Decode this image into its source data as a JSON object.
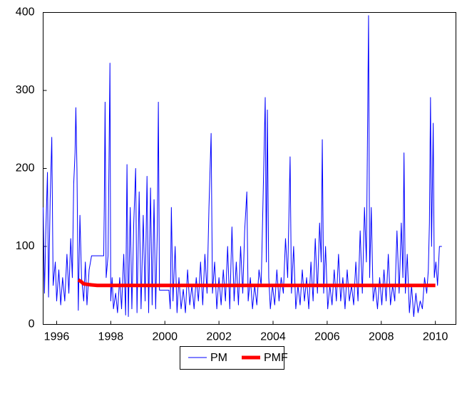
{
  "chart_data": {
    "type": "line",
    "xlim": [
      1995.5,
      2010.76
    ],
    "ylim": [
      0,
      400
    ],
    "xticks": [
      1996,
      1998,
      2000,
      2002,
      2004,
      2006,
      2008,
      2010
    ],
    "yticks": [
      0,
      100,
      200,
      300,
      400
    ],
    "legend": "bottom",
    "series": [
      {
        "name": "PM",
        "color": "#0000ff",
        "width": 1,
        "x": [
          1995.5,
          1995.55,
          1995.6,
          1995.66,
          1995.7,
          1995.76,
          1995.82,
          1995.87,
          1995.95,
          1996.0,
          1996.08,
          1996.15,
          1996.22,
          1996.3,
          1996.38,
          1996.45,
          1996.52,
          1996.58,
          1996.63,
          1996.68,
          1996.71,
          1996.75,
          1996.8,
          1996.86,
          1996.92,
          1997.0,
          1997.06,
          1997.12,
          1997.2,
          1997.29,
          1997.74,
          1997.76,
          1997.79,
          1997.83,
          1997.9,
          1997.97,
          1998.0,
          1998.05,
          1998.1,
          1998.18,
          1998.25,
          1998.33,
          1998.4,
          1998.48,
          1998.55,
          1998.6,
          1998.65,
          1998.72,
          1998.78,
          1998.85,
          1998.92,
          1998.97,
          1999.05,
          1999.12,
          1999.2,
          1999.27,
          1999.34,
          1999.4,
          1999.47,
          1999.53,
          1999.6,
          1999.66,
          1999.72,
          1999.76,
          1999.8,
          2000.15,
          2000.2,
          2000.24,
          2000.3,
          2000.38,
          2000.45,
          2000.52,
          2000.6,
          2000.68,
          2000.76,
          2000.84,
          2000.92,
          2001.0,
          2001.08,
          2001.16,
          2001.24,
          2001.32,
          2001.4,
          2001.48,
          2001.56,
          2001.63,
          2001.71,
          2001.76,
          2001.84,
          2001.92,
          2002.0,
          2002.08,
          2002.16,
          2002.24,
          2002.32,
          2002.4,
          2002.48,
          2002.56,
          2002.64,
          2002.72,
          2002.8,
          2002.88,
          2002.95,
          2003.03,
          2003.08,
          2003.16,
          2003.24,
          2003.32,
          2003.4,
          2003.48,
          2003.56,
          2003.63,
          2003.71,
          2003.75,
          2003.79,
          2003.84,
          2003.9,
          2003.98,
          2004.06,
          2004.14,
          2004.22,
          2004.3,
          2004.38,
          2004.46,
          2004.54,
          2004.63,
          2004.68,
          2004.76,
          2004.84,
          2004.92,
          2005.0,
          2005.08,
          2005.16,
          2005.24,
          2005.32,
          2005.4,
          2005.48,
          2005.56,
          2005.64,
          2005.72,
          2005.78,
          2005.82,
          2005.87,
          2005.94,
          2006.02,
          2006.1,
          2006.18,
          2006.26,
          2006.34,
          2006.42,
          2006.5,
          2006.58,
          2006.66,
          2006.74,
          2006.82,
          2006.9,
          2006.98,
          2007.06,
          2007.14,
          2007.22,
          2007.3,
          2007.38,
          2007.45,
          2007.53,
          2007.57,
          2007.63,
          2007.7,
          2007.78,
          2007.86,
          2007.94,
          2008.02,
          2008.1,
          2008.18,
          2008.26,
          2008.34,
          2008.42,
          2008.5,
          2008.58,
          2008.66,
          2008.74,
          2008.8,
          2008.84,
          2008.89,
          2008.96,
          2009.04,
          2009.12,
          2009.2,
          2009.28,
          2009.36,
          2009.44,
          2009.52,
          2009.6,
          2009.68,
          2009.74,
          2009.78,
          2009.82,
          2009.86,
          2009.92,
          2009.96,
          2010.02,
          2010.08,
          2010.15,
          2010.24
        ],
        "values": [
          150,
          40,
          120,
          195,
          35,
          160,
          240,
          50,
          80,
          30,
          70,
          25,
          60,
          30,
          90,
          40,
          110,
          60,
          180,
          220,
          278,
          200,
          18,
          140,
          60,
          30,
          80,
          25,
          70,
          88,
          88,
          150,
          285,
          60,
          88,
          335,
          30,
          60,
          20,
          40,
          15,
          60,
          20,
          90,
          12,
          205,
          10,
          150,
          20,
          130,
          200,
          15,
          170,
          20,
          140,
          30,
          190,
          15,
          175,
          25,
          160,
          20,
          120,
          285,
          44,
          44,
          20,
          150,
          30,
          100,
          15,
          60,
          20,
          45,
          15,
          70,
          25,
          50,
          20,
          60,
          30,
          80,
          25,
          90,
          40,
          150,
          245,
          40,
          80,
          20,
          60,
          25,
          70,
          30,
          100,
          20,
          125,
          30,
          80,
          25,
          100,
          40,
          120,
          170,
          30,
          60,
          20,
          50,
          25,
          70,
          50,
          160,
          291,
          80,
          275,
          60,
          20,
          50,
          25,
          70,
          30,
          60,
          40,
          110,
          60,
          215,
          40,
          100,
          20,
          50,
          25,
          70,
          30,
          60,
          20,
          80,
          30,
          110,
          40,
          130,
          80,
          237,
          40,
          100,
          20,
          50,
          25,
          70,
          30,
          90,
          30,
          60,
          20,
          70,
          30,
          50,
          25,
          80,
          30,
          120,
          40,
          150,
          80,
          396,
          60,
          150,
          30,
          50,
          20,
          60,
          25,
          70,
          30,
          90,
          25,
          50,
          30,
          120,
          40,
          130,
          60,
          220,
          40,
          90,
          15,
          50,
          10,
          40,
          15,
          30,
          20,
          60,
          40,
          70,
          130,
          291,
          100,
          258,
          60,
          80,
          50,
          100,
          100
        ]
      },
      {
        "name": "PMF",
        "color": "#ff0000",
        "width": 5,
        "x": [
          1996.8,
          1996.9,
          1997.0,
          1997.2,
          1997.5,
          2000,
          2005,
          2010.0
        ],
        "values": [
          57,
          55,
          52,
          51,
          50,
          50,
          50,
          50
        ]
      }
    ]
  }
}
